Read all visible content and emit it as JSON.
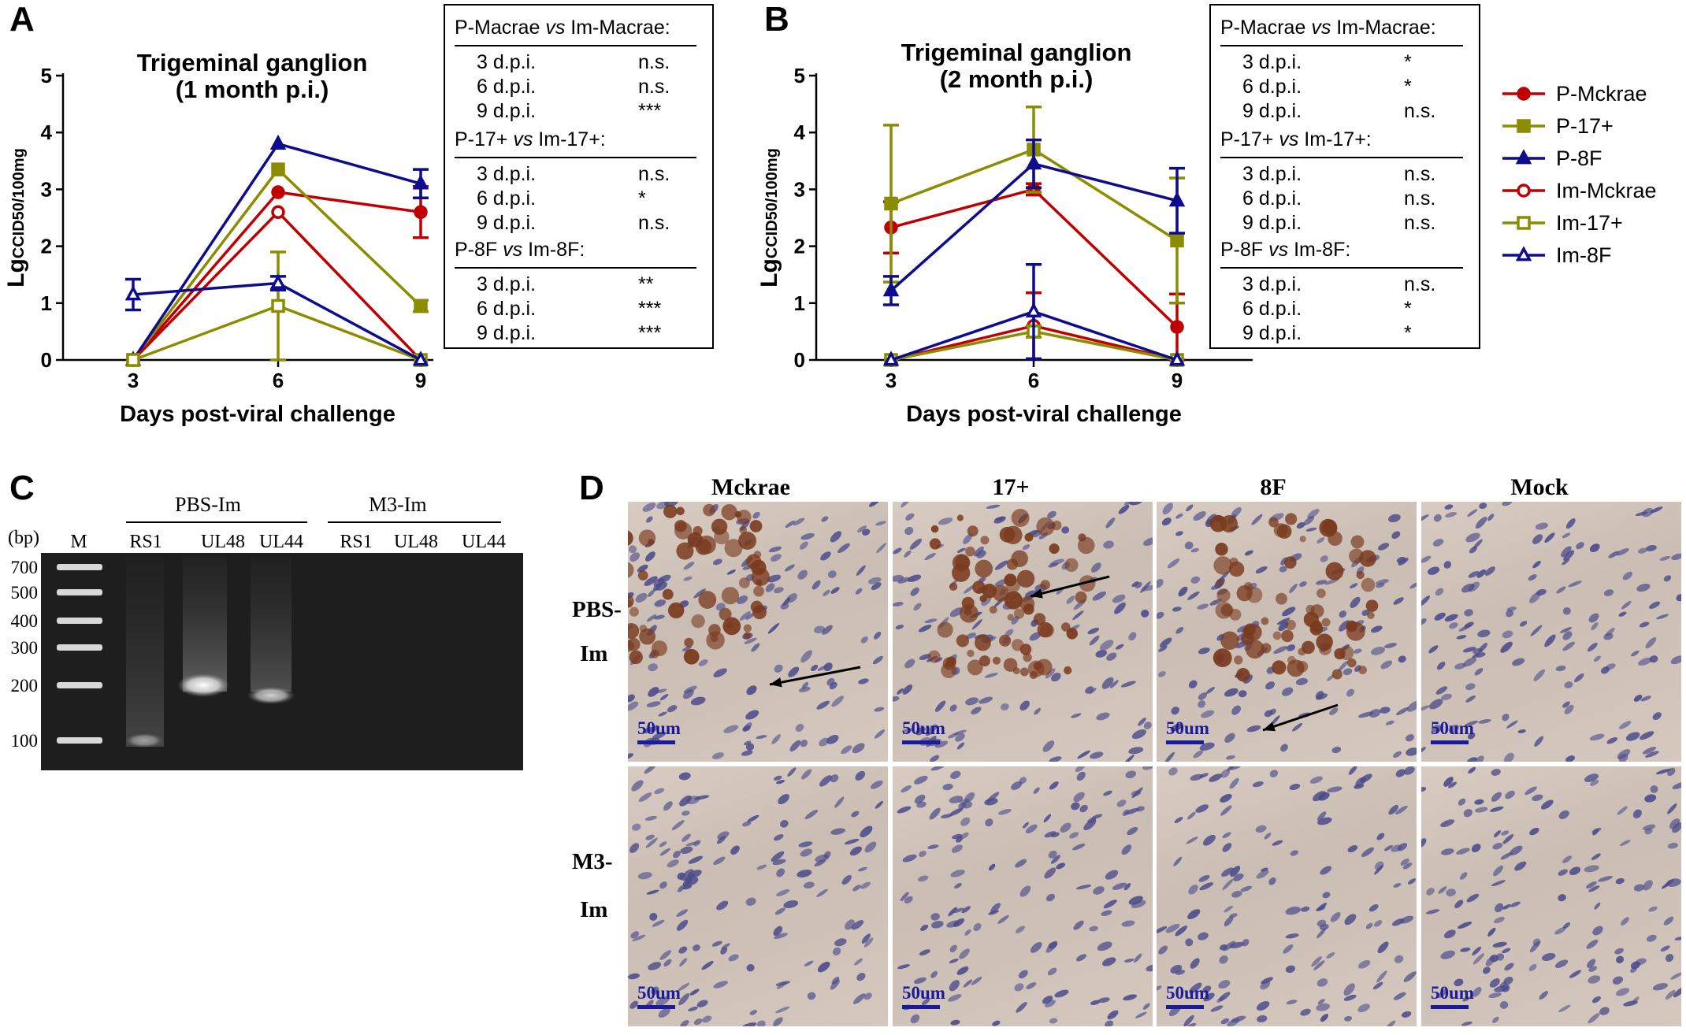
{
  "panels": {
    "a": "A",
    "b": "B",
    "c": "C",
    "d": "D"
  },
  "chart_data": [
    {
      "type": "line",
      "title": [
        "Trigeminal ganglion",
        "(1 month p.i.)"
      ],
      "xlabel": "Days post-viral challenge",
      "ylabel_main": "Lg",
      "ylabel_sub": "CCID50/100mg",
      "x": [
        3,
        6,
        9
      ],
      "xticks": [
        "3",
        "6",
        "9"
      ],
      "yticks": [
        "0",
        "1",
        "2",
        "3",
        "4",
        "5"
      ],
      "ylim": [
        0,
        5
      ],
      "series": [
        {
          "name": "P-Mckrae",
          "color": "#c00000",
          "marker": "circle-filled",
          "values": [
            0,
            2.95,
            2.6
          ],
          "err": [
            0,
            0,
            0.45
          ]
        },
        {
          "name": "P-17+",
          "color": "#8c8c00",
          "marker": "square-filled",
          "values": [
            0,
            3.35,
            0.95
          ],
          "err": [
            0,
            0,
            0.1
          ]
        },
        {
          "name": "P-8F",
          "color": "#0c0c8c",
          "marker": "triangle-filled",
          "values": [
            0,
            3.8,
            3.1
          ],
          "err": [
            0,
            0,
            0.25
          ]
        },
        {
          "name": "Im-Mckrae",
          "color": "#c00000",
          "marker": "circle-open",
          "values": [
            0,
            2.6,
            0
          ],
          "err": [
            0,
            0,
            0
          ]
        },
        {
          "name": "Im-17+",
          "color": "#8c8c00",
          "marker": "square-open",
          "values": [
            0,
            0.95,
            0
          ],
          "err": [
            0,
            0.95,
            0
          ]
        },
        {
          "name": "Im-8F",
          "color": "#0c0c8c",
          "marker": "triangle-open",
          "values": [
            1.15,
            1.35,
            0
          ],
          "err": [
            0.27,
            0.12,
            0
          ]
        }
      ],
      "stats": [
        {
          "left": "P-Macrae",
          "vs": "vs",
          "right": "Im-Macrae:",
          "rows": [
            [
              "3 d.p.i.",
              "n.s."
            ],
            [
              "6 d.p.i.",
              "n.s."
            ],
            [
              "9 d.p.i.",
              "***"
            ]
          ]
        },
        {
          "left": "P-17+",
          "vs": "vs",
          "right": "Im-17+:",
          "rows": [
            [
              "3 d.p.i.",
              "n.s."
            ],
            [
              "6 d.p.i.",
              "*"
            ],
            [
              "9 d.p.i.",
              "n.s."
            ]
          ]
        },
        {
          "left": "P-8F",
          "vs": "vs",
          "right": "Im-8F:",
          "rows": [
            [
              "3 d.p.i.",
              "**"
            ],
            [
              "6 d.p.i.",
              "***"
            ],
            [
              "9 d.p.i.",
              "***"
            ]
          ]
        }
      ]
    },
    {
      "type": "line",
      "title": [
        "Trigeminal ganglion",
        "(2 month p.i.)"
      ],
      "xlabel": "Days post-viral challenge",
      "ylabel_main": "Lg",
      "ylabel_sub": "CCID50/100mg",
      "x": [
        3,
        6,
        9
      ],
      "xticks": [
        "3",
        "6",
        "9"
      ],
      "yticks": [
        "0",
        "1",
        "2",
        "3",
        "4",
        "5"
      ],
      "ylim": [
        0,
        5
      ],
      "series": [
        {
          "name": "P-Mckrae",
          "color": "#c00000",
          "marker": "circle-filled",
          "values": [
            2.33,
            3.0,
            0.58
          ],
          "err": [
            0.45,
            0.1,
            0.58
          ]
        },
        {
          "name": "P-17+",
          "color": "#8c8c00",
          "marker": "square-filled",
          "values": [
            2.75,
            3.7,
            2.1
          ],
          "err": [
            1.38,
            0.75,
            1.1
          ]
        },
        {
          "name": "P-8F",
          "color": "#0c0c8c",
          "marker": "triangle-filled",
          "values": [
            1.22,
            3.45,
            2.8
          ],
          "err": [
            0.25,
            0.42,
            0.57
          ]
        },
        {
          "name": "Im-Mckrae",
          "color": "#c00000",
          "marker": "circle-open",
          "values": [
            0,
            0.6,
            0
          ],
          "err": [
            0,
            0.58,
            0
          ]
        },
        {
          "name": "Im-17+",
          "color": "#8c8c00",
          "marker": "square-open",
          "values": [
            0,
            0.5,
            0
          ],
          "err": [
            0,
            0.1,
            0
          ]
        },
        {
          "name": "Im-8F",
          "color": "#0c0c8c",
          "marker": "triangle-open",
          "values": [
            0,
            0.85,
            0
          ],
          "err": [
            0,
            0.83,
            0
          ]
        }
      ],
      "stats": [
        {
          "left": "P-Macrae",
          "vs": "vs",
          "right": "Im-Macrae:",
          "rows": [
            [
              "3 d.p.i.",
              "*"
            ],
            [
              "6 d.p.i.",
              "*"
            ],
            [
              "9 d.p.i.",
              "n.s."
            ]
          ]
        },
        {
          "left": "P-17+",
          "vs": "vs",
          "right": "Im-17+:",
          "rows": [
            [
              "3 d.p.i.",
              "n.s."
            ],
            [
              "6 d.p.i.",
              "n.s."
            ],
            [
              "9 d.p.i.",
              "n.s."
            ]
          ]
        },
        {
          "left": "P-8F",
          "vs": "vs",
          "right": "Im-8F:",
          "rows": [
            [
              "3 d.p.i.",
              "n.s."
            ],
            [
              "6 d.p.i.",
              "*"
            ],
            [
              "9 d.p.i.",
              "*"
            ]
          ]
        }
      ]
    }
  ],
  "legend": [
    {
      "name": "P-Mckrae",
      "color": "#c00000",
      "marker": "circle-filled"
    },
    {
      "name": "P-17+",
      "color": "#8c8c00",
      "marker": "square-filled"
    },
    {
      "name": "P-8F",
      "color": "#0c0c8c",
      "marker": "triangle-filled"
    },
    {
      "name": "Im-Mckrae",
      "color": "#c00000",
      "marker": "circle-open"
    },
    {
      "name": "Im-17+",
      "color": "#8c8c00",
      "marker": "square-open"
    },
    {
      "name": "Im-8F",
      "color": "#0c0c8c",
      "marker": "triangle-open"
    }
  ],
  "gel": {
    "group1": "PBS-Im",
    "group2": "M3-Im",
    "unit": "(bp)",
    "lanes": [
      "M",
      "RS1",
      "UL48",
      "UL44",
      "RS1",
      "UL48",
      "UL44"
    ],
    "markers": [
      "700",
      "500",
      "400",
      "300",
      "200",
      "100"
    ]
  },
  "histology": {
    "columns": [
      "Mckrae",
      "17+",
      "8F",
      "Mock"
    ],
    "rows": [
      [
        "PBS-",
        "Im"
      ],
      [
        "M3-",
        "Im"
      ]
    ],
    "scalebar": "50um"
  }
}
